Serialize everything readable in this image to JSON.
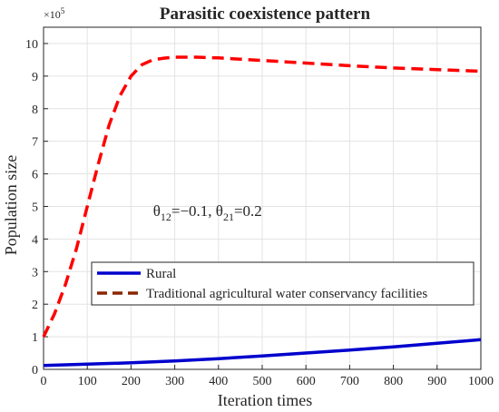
{
  "chart_data": {
    "type": "line",
    "title": "Parasitic coexistence pattern",
    "xlabel": "Iteration times",
    "ylabel": "Population size",
    "y_exponent_label": "×10",
    "y_exponent_power": "5",
    "xlim": [
      0,
      1000
    ],
    "ylim": [
      0,
      10.5
    ],
    "x_ticks": [
      0,
      100,
      200,
      300,
      400,
      500,
      600,
      700,
      800,
      900,
      1000
    ],
    "y_ticks": [
      0,
      1,
      2,
      3,
      4,
      5,
      6,
      7,
      8,
      9,
      10
    ],
    "grid": true,
    "legend_position": "lower-left",
    "annotation": {
      "parts": [
        {
          "text": "θ",
          "sub": false
        },
        {
          "text": "12",
          "sub": true
        },
        {
          "text": "=−0.1, θ",
          "sub": false
        },
        {
          "text": "21",
          "sub": true
        },
        {
          "text": "=0.2",
          "sub": false
        }
      ],
      "x": 375,
      "y": 4.7
    },
    "series": [
      {
        "name": "Rural",
        "color": "#0000cd",
        "style": "solid",
        "x": [
          0,
          100,
          200,
          300,
          400,
          500,
          600,
          700,
          800,
          900,
          1000
        ],
        "y": [
          0.12,
          0.16,
          0.2,
          0.26,
          0.33,
          0.41,
          0.5,
          0.59,
          0.69,
          0.8,
          0.91
        ]
      },
      {
        "name": "Traditional agricultural water conservancy facilities",
        "color": "#ff0000",
        "legend_color": "#8b2500",
        "style": "dashed",
        "x": [
          0,
          25,
          50,
          75,
          100,
          125,
          150,
          175,
          200,
          225,
          250,
          275,
          300,
          350,
          400,
          450,
          500,
          600,
          700,
          800,
          900,
          1000
        ],
        "y": [
          1.0,
          1.7,
          2.6,
          3.7,
          5.0,
          6.3,
          7.5,
          8.4,
          9.0,
          9.35,
          9.5,
          9.55,
          9.58,
          9.58,
          9.56,
          9.52,
          9.48,
          9.4,
          9.32,
          9.25,
          9.2,
          9.15
        ]
      }
    ]
  }
}
